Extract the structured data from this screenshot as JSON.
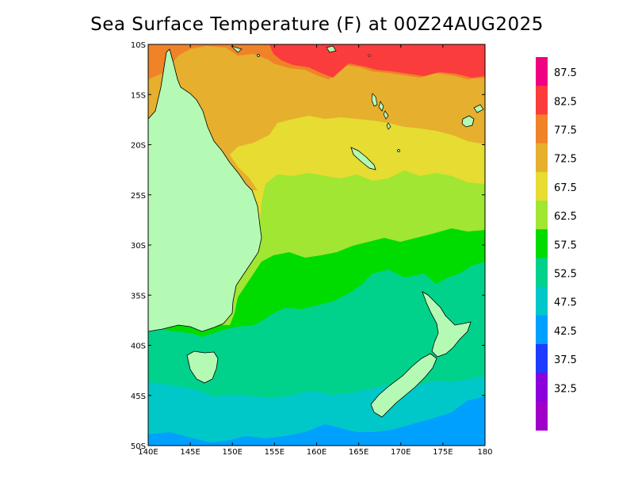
{
  "title": "Sea Surface Temperature (F) at 00Z24AUG2025",
  "map": {
    "lon_labels": [
      "140E",
      "145E",
      "150E",
      "155E",
      "160E",
      "165E",
      "170E",
      "175E",
      "180"
    ],
    "lat_labels": [
      "10S",
      "15S",
      "20S",
      "25S",
      "30S",
      "35S",
      "40S",
      "45S",
      "50S"
    ],
    "land_color": "#b4fab4"
  },
  "colorbar": {
    "labels": [
      "87.5",
      "82.5",
      "77.5",
      "72.5",
      "67.5",
      "62.5",
      "57.5",
      "52.5",
      "47.5",
      "42.5",
      "37.5",
      "32.5"
    ],
    "colors": [
      "#f00082",
      "#fa3c3c",
      "#f08228",
      "#e6af2d",
      "#e6dc32",
      "#a0e632",
      "#00dc00",
      "#00d28c",
      "#00c8c8",
      "#00a0ff",
      "#1e3cff",
      "#8c00dc",
      "#a000c8"
    ]
  }
}
